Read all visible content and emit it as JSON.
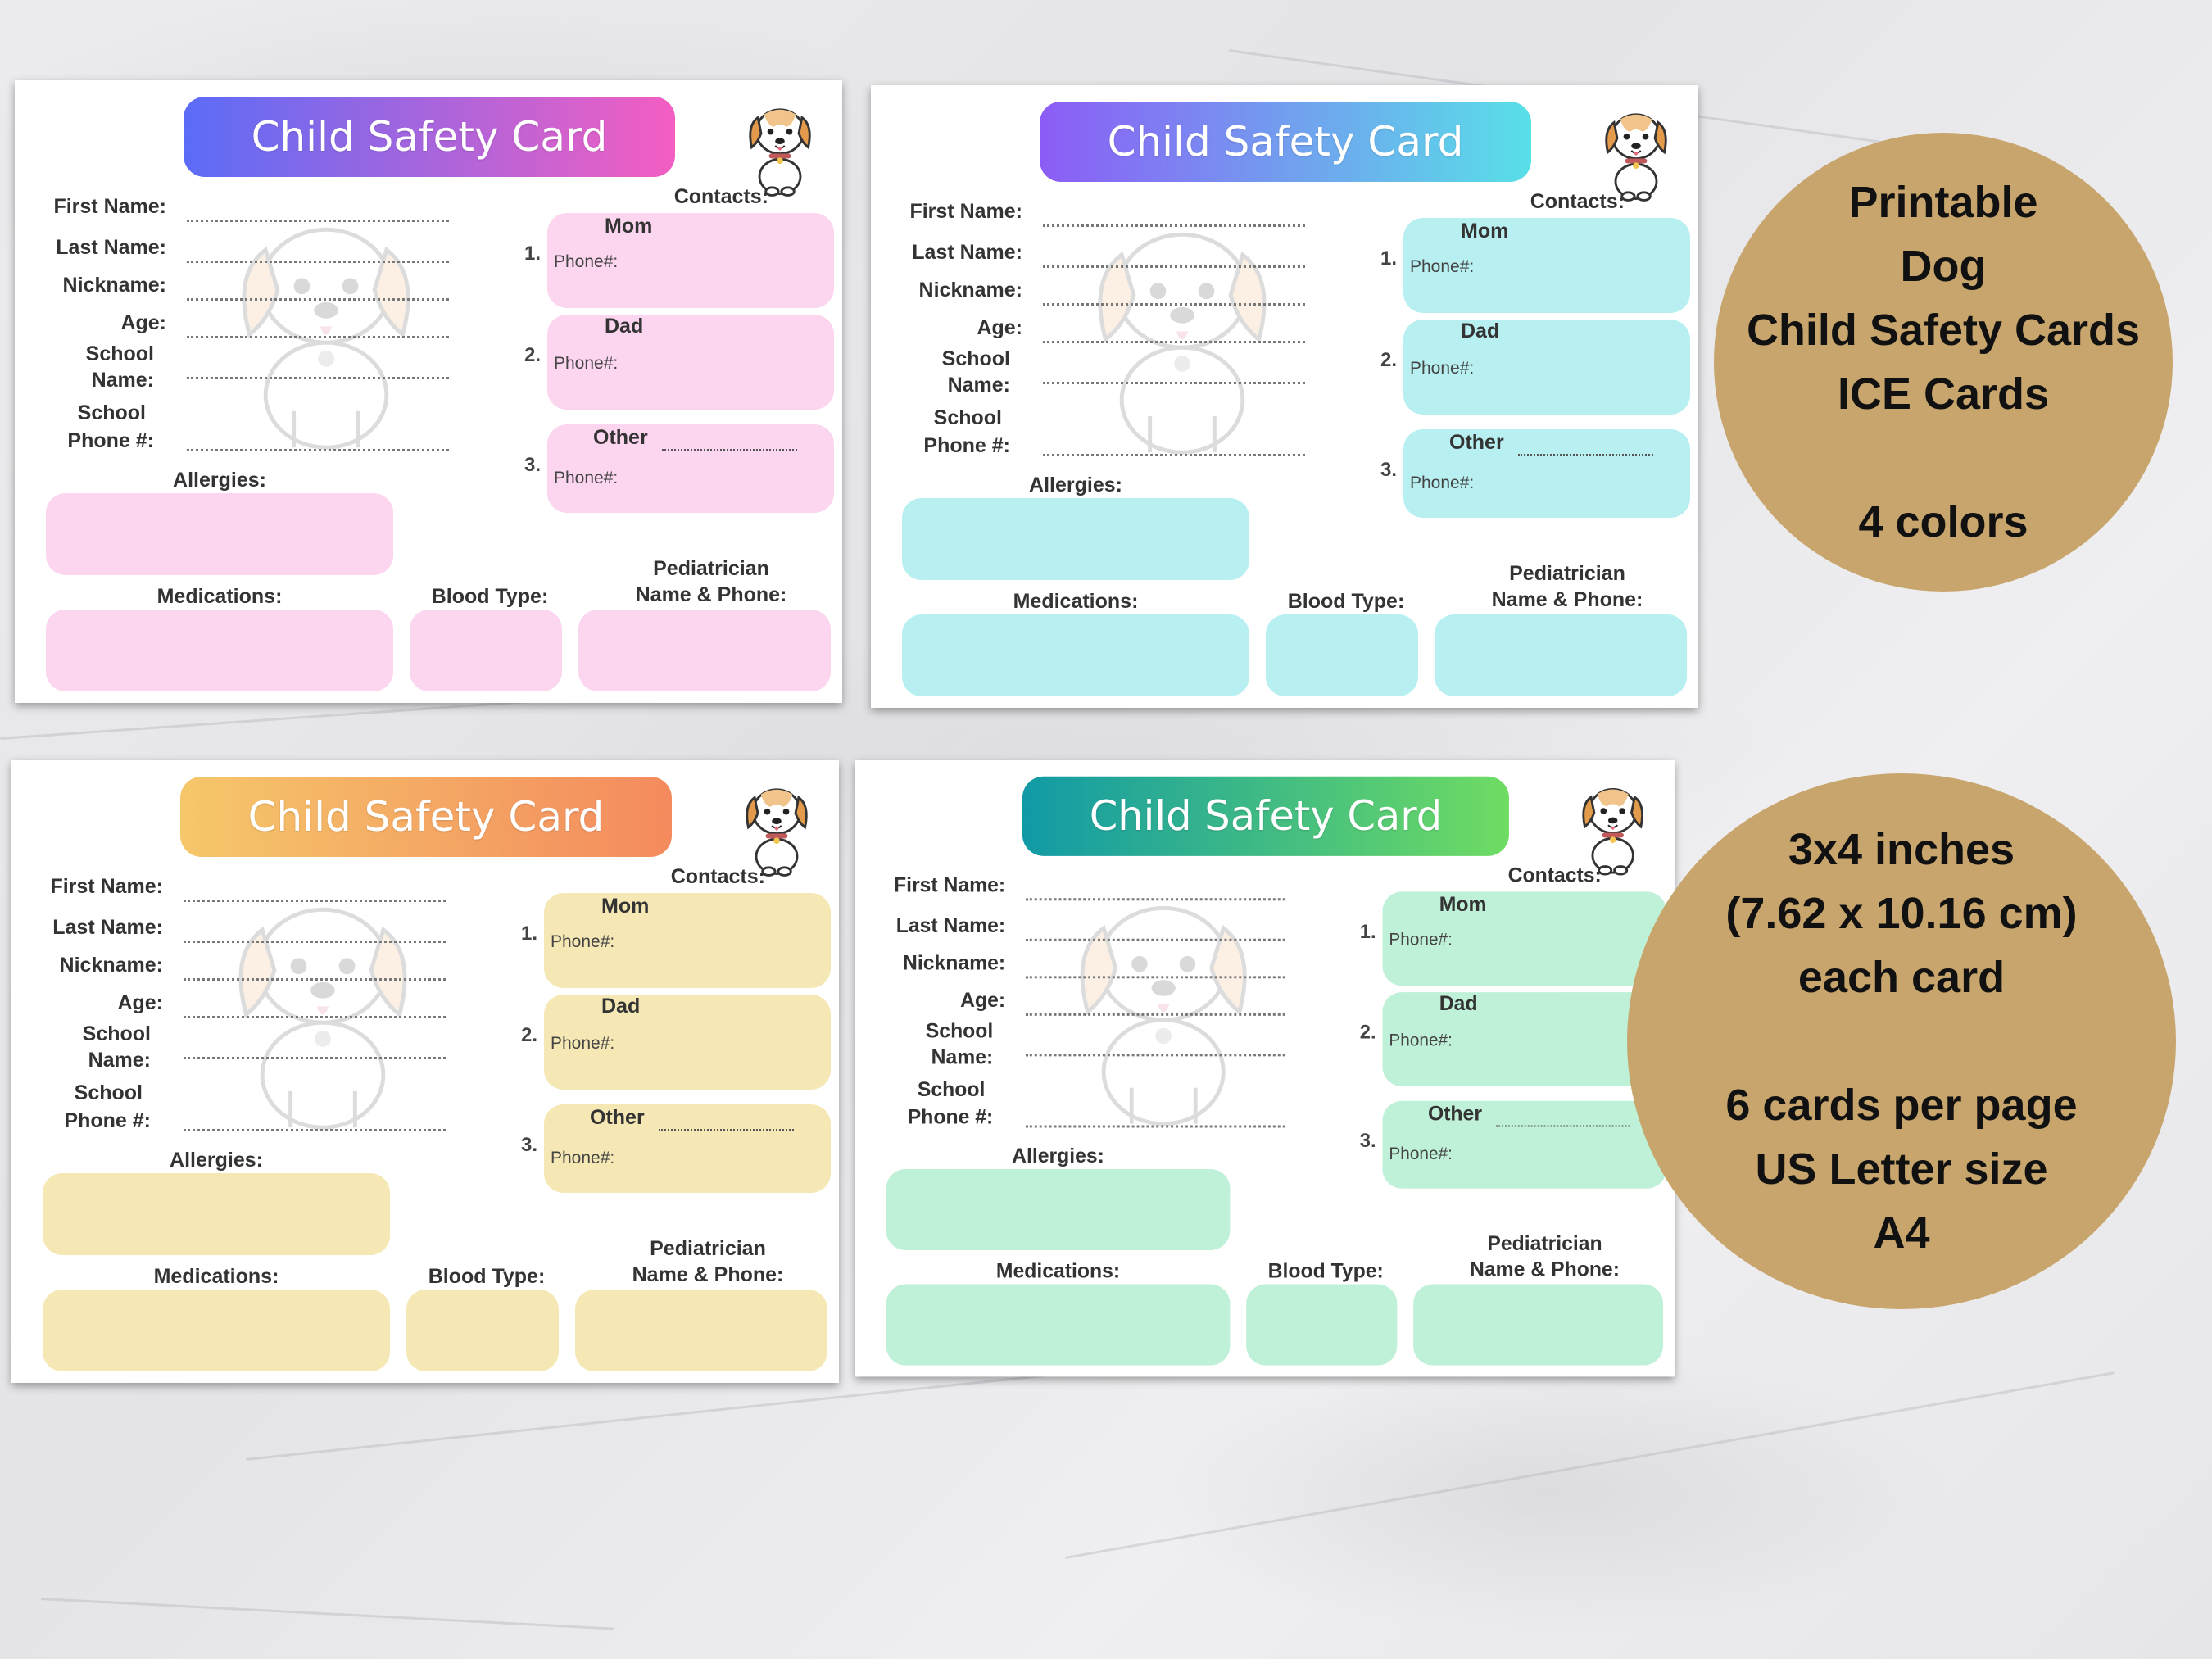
{
  "card": {
    "title": "Child Safety Card",
    "fields": {
      "first_name": "First Name:",
      "last_name": "Last Name:",
      "nickname": "Nickname:",
      "age": "Age:",
      "school_name_1": "School",
      "school_name_2": "Name:",
      "school_phone_1": "School",
      "school_phone_2": "Phone #:"
    },
    "contacts_label": "Contacts:",
    "contacts": [
      {
        "number": "1.",
        "name": "Mom",
        "phone_label": "Phone#:"
      },
      {
        "number": "2.",
        "name": "Dad",
        "phone_label": "Phone#:"
      },
      {
        "number": "3.",
        "name": "Other",
        "phone_label": "Phone#:"
      }
    ],
    "allergies": "Allergies:",
    "medications": "Medications:",
    "blood_type": "Blood Type:",
    "pediatrician_1": "Pediatrician",
    "pediatrician_2": "Name & Phone:"
  },
  "variants": [
    {
      "name": "pink",
      "title_gradient": [
        "#5b6cf7",
        "#f45ec2"
      ],
      "box_color": "#fcd5ef"
    },
    {
      "name": "cyan",
      "title_gradient": [
        "#8c5cf6",
        "#58e0e8"
      ],
      "box_color": "#b8f0f2"
    },
    {
      "name": "yellow",
      "title_gradient": [
        "#f5c76a",
        "#f48a5e"
      ],
      "box_color": "#f5e8b4"
    },
    {
      "name": "green",
      "title_gradient": [
        "#119aa6",
        "#6fdc62"
      ],
      "box_color": "#bff0d8"
    }
  ],
  "promo_circle_1": {
    "lines": [
      "Printable",
      "Dog",
      "Child Safety Cards",
      "ICE Cards",
      "",
      "4 colors"
    ]
  },
  "promo_circle_2": {
    "lines": [
      "3x4 inches",
      "(7.62 x 10.16 cm)",
      "each card",
      "",
      "6 cards per page",
      "US Letter size",
      "A4"
    ]
  }
}
